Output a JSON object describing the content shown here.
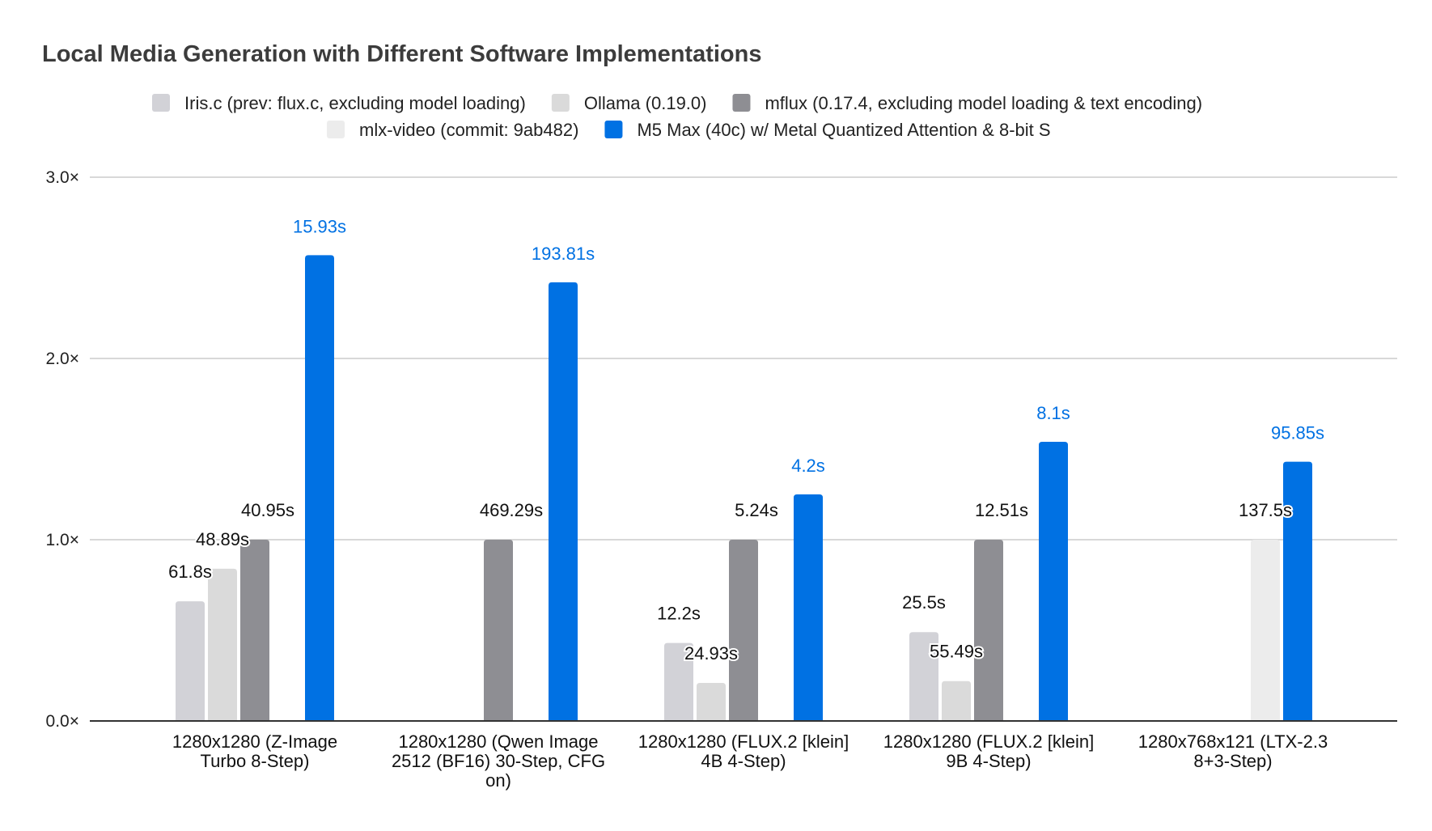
{
  "chart_data": {
    "type": "bar",
    "title": "Local Media Generation with Different Software Implementations",
    "xlabel": "",
    "ylabel": "",
    "ylim": [
      0,
      3
    ],
    "yticks": [
      "0.0×",
      "1.0×",
      "2.0×",
      "3.0×"
    ],
    "ytick_values": [
      0,
      1,
      2,
      3
    ],
    "grid": true,
    "legend_position": "top",
    "categories": [
      [
        "1280x1280 (Z-Image",
        "Turbo 8-Step)"
      ],
      [
        "1280x1280 (Qwen Image",
        "2512 (BF16) 30-Step, CFG",
        "on)"
      ],
      [
        "1280x1280 (FLUX.2 [klein]",
        "4B 4-Step)"
      ],
      [
        "1280x1280 (FLUX.2 [klein]",
        "9B 4-Step)"
      ],
      [
        "1280x768x121 (LTX-2.3",
        "8+3-Step)"
      ]
    ],
    "series": [
      {
        "name": "Iris.c (prev: flux.c, excluding model loading)",
        "color": "#d2d2d7",
        "values": [
          0.66,
          null,
          0.43,
          0.49,
          null
        ],
        "labels": [
          "61.8s",
          null,
          "12.2s",
          "25.5s",
          null
        ]
      },
      {
        "name": "Ollama (0.19.0)",
        "color": "#dadada",
        "values": [
          0.84,
          null,
          0.21,
          0.22,
          null
        ],
        "labels": [
          "48.89s",
          null,
          "24.93s",
          "55.49s",
          null
        ]
      },
      {
        "name": "mflux (0.17.4, excluding model loading & text encoding)",
        "color": "#8e8e93",
        "values": [
          1.0,
          1.0,
          1.0,
          1.0,
          null
        ],
        "labels": [
          "40.95s",
          "469.29s",
          "5.24s",
          "12.51s",
          null
        ]
      },
      {
        "name": "mlx-video (commit: 9ab482)",
        "color": "#ececec",
        "values": [
          null,
          null,
          null,
          null,
          1.0
        ],
        "labels": [
          null,
          null,
          null,
          null,
          "137.5s"
        ]
      },
      {
        "name": "M5 Max (40c) w/ Metal Quantized Attention & 8-bit S",
        "color": "#0071e3",
        "values": [
          2.57,
          2.42,
          1.25,
          1.54,
          1.43
        ],
        "labels": [
          "15.93s",
          "193.81s",
          "4.2s",
          "8.1s",
          "95.85s"
        ]
      }
    ]
  }
}
